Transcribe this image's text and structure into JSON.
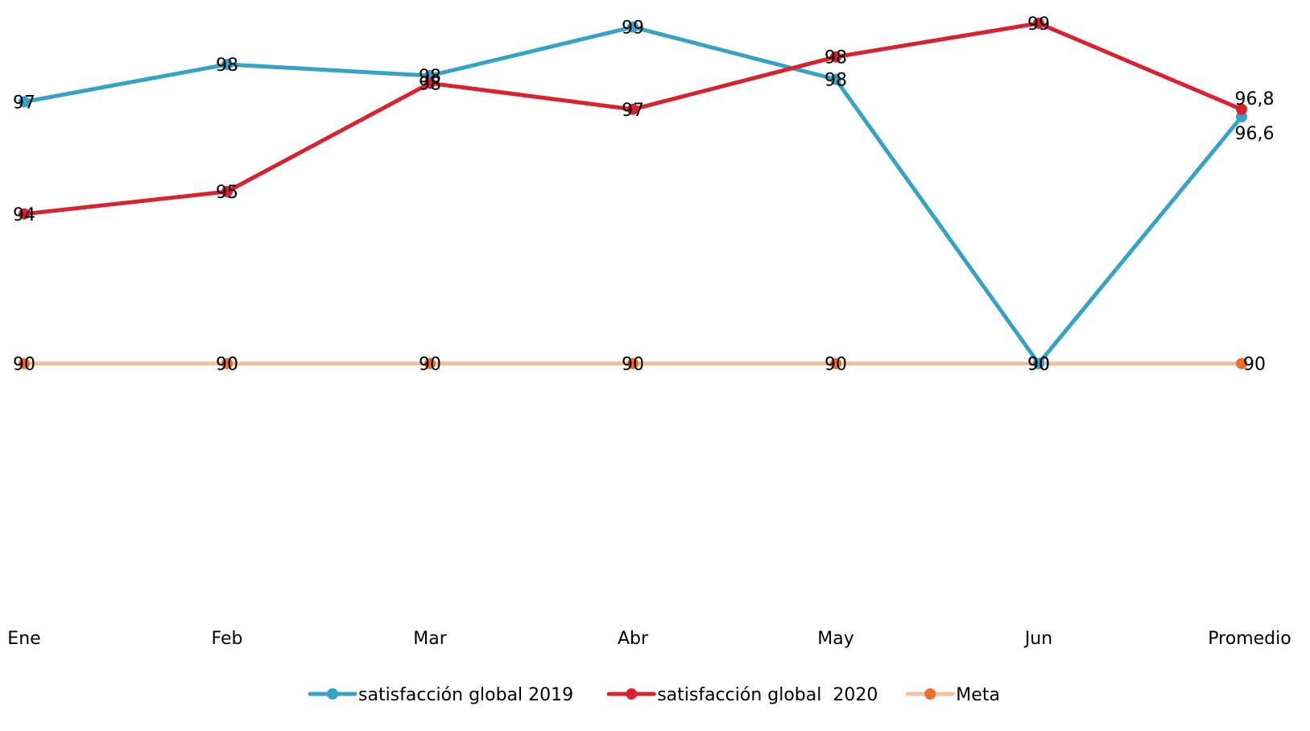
{
  "chart_data": {
    "type": "line",
    "title": "",
    "xlabel": "",
    "ylabel": "",
    "categories": [
      "Ene",
      "Feb",
      "Mar",
      "Abr",
      "May",
      "Jun",
      "Promedio"
    ],
    "ylim": [
      82.5,
      99.4
    ],
    "grid": false,
    "legend": "bottom",
    "series": [
      {
        "name": "satisfacción global 2019",
        "color": "#36a2c4",
        "values": [
          97,
          98,
          97.7,
          99,
          97.6,
          90,
          96.6
        ],
        "labels": [
          "97",
          "98",
          "98",
          "99",
          "98",
          "90",
          "96,6"
        ]
      },
      {
        "name": "satisfacción global  2020",
        "color": "#d7232f",
        "values": [
          94,
          94.6,
          97.5,
          96.8,
          98.2,
          99.1,
          96.8
        ],
        "labels": [
          "94",
          "95",
          "98",
          "97",
          "98",
          "99",
          "96,8"
        ]
      },
      {
        "name": "Meta",
        "color": "#f5be9e",
        "marker_color": "#ee6f2d",
        "values": [
          90,
          90,
          90,
          90,
          90,
          90,
          90
        ],
        "labels": [
          "90",
          "90",
          "90",
          "90",
          "90",
          "90",
          "90"
        ]
      }
    ]
  }
}
